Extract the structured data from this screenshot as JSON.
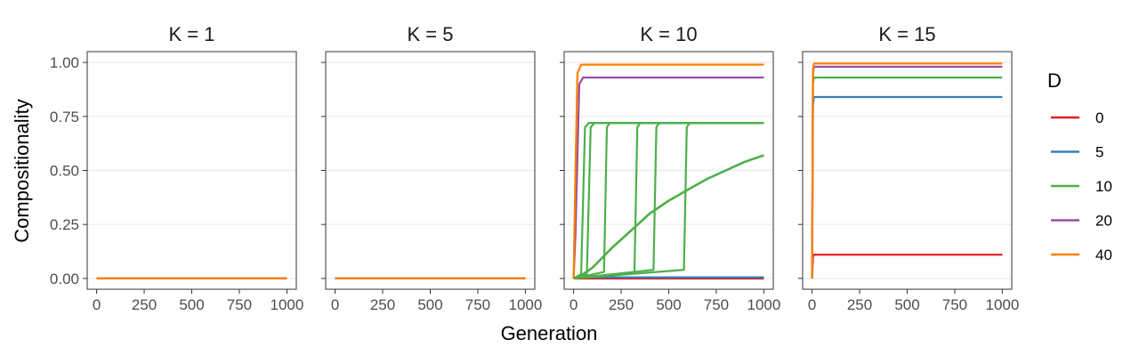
{
  "chart_data": {
    "type": "line",
    "facet_variable": "K",
    "xlabel": "Generation",
    "ylabel": "Compositionality",
    "xlim": [
      0,
      1000
    ],
    "ylim": [
      0,
      1
    ],
    "x_ticks": [
      "0",
      "250",
      "500",
      "750",
      "1000"
    ],
    "y_ticks": [
      "0.00",
      "0.25",
      "0.50",
      "0.75",
      "1.00"
    ],
    "grid": "horizontal",
    "legend": {
      "title": "D",
      "position": "right",
      "entries": [
        {
          "label": "0",
          "color": "#e41a1c"
        },
        {
          "label": "5",
          "color": "#377eb8"
        },
        {
          "label": "10",
          "color": "#4daf4a"
        },
        {
          "label": "20",
          "color": "#984ea3"
        },
        {
          "label": "40",
          "color": "#ff7f00"
        }
      ]
    },
    "panels": [
      {
        "title": "K = 1",
        "series": [
          {
            "D": "0",
            "x": [
              0,
              1000
            ],
            "y": [
              0,
              0
            ]
          },
          {
            "D": "5",
            "x": [
              0,
              1000
            ],
            "y": [
              0,
              0
            ]
          },
          {
            "D": "10",
            "x": [
              0,
              1000
            ],
            "y": [
              0,
              0
            ]
          },
          {
            "D": "20",
            "x": [
              0,
              1000
            ],
            "y": [
              0,
              0
            ]
          },
          {
            "D": "40",
            "x": [
              0,
              1000
            ],
            "y": [
              0,
              0
            ]
          }
        ]
      },
      {
        "title": "K = 5",
        "series": [
          {
            "D": "0",
            "x": [
              0,
              1000
            ],
            "y": [
              0,
              0
            ]
          },
          {
            "D": "5",
            "x": [
              0,
              1000
            ],
            "y": [
              0,
              0
            ]
          },
          {
            "D": "10",
            "x": [
              0,
              1000
            ],
            "y": [
              0,
              0
            ]
          },
          {
            "D": "20",
            "x": [
              0,
              1000
            ],
            "y": [
              0,
              0
            ]
          },
          {
            "D": "40",
            "x": [
              0,
              1000
            ],
            "y": [
              0,
              0
            ]
          }
        ]
      },
      {
        "title": "K = 10",
        "series": [
          {
            "D": "0",
            "x": [
              0,
              1000
            ],
            "y": [
              0,
              0
            ]
          },
          {
            "D": "5",
            "x": [
              0,
              1000
            ],
            "y": [
              0.005,
              0.005
            ]
          },
          {
            "D": "10",
            "x": [
              0,
              50,
              100,
              200,
              300,
              400,
              500,
              600,
              700,
              800,
              900,
              1000
            ],
            "y": [
              0,
              0.02,
              0.05,
              0.14,
              0.22,
              0.3,
              0.36,
              0.41,
              0.46,
              0.5,
              0.54,
              0.57
            ]
          },
          {
            "D": "10",
            "x": [
              0,
              40,
              60,
              80,
              1000
            ],
            "y": [
              0,
              0.02,
              0.7,
              0.72,
              0.72
            ]
          },
          {
            "D": "10",
            "x": [
              0,
              70,
              90,
              110,
              1000
            ],
            "y": [
              0,
              0.02,
              0.7,
              0.72,
              0.72
            ]
          },
          {
            "D": "10",
            "x": [
              0,
              160,
              175,
              190,
              1000
            ],
            "y": [
              0,
              0.03,
              0.7,
              0.72,
              0.72
            ]
          },
          {
            "D": "10",
            "x": [
              0,
              320,
              335,
              350,
              1000
            ],
            "y": [
              0,
              0.03,
              0.7,
              0.72,
              0.72
            ]
          },
          {
            "D": "10",
            "x": [
              0,
              420,
              435,
              450,
              1000
            ],
            "y": [
              0,
              0.04,
              0.7,
              0.72,
              0.72
            ]
          },
          {
            "D": "10",
            "x": [
              0,
              580,
              595,
              610,
              1000
            ],
            "y": [
              0,
              0.04,
              0.7,
              0.72,
              0.72
            ]
          },
          {
            "D": "20",
            "x": [
              0,
              10,
              30,
              50,
              1000
            ],
            "y": [
              0,
              0.2,
              0.9,
              0.93,
              0.93
            ]
          },
          {
            "D": "40",
            "x": [
              0,
              10,
              20,
              40,
              1000
            ],
            "y": [
              0,
              0.5,
              0.95,
              0.99,
              0.99
            ]
          }
        ]
      },
      {
        "title": "K = 15",
        "series": [
          {
            "D": "0",
            "x": [
              0,
              5,
              10,
              1000
            ],
            "y": [
              0,
              0.1,
              0.11,
              0.11
            ]
          },
          {
            "D": "5",
            "x": [
              0,
              5,
              10,
              1000
            ],
            "y": [
              0,
              0.8,
              0.84,
              0.84
            ]
          },
          {
            "D": "10",
            "x": [
              0,
              5,
              10,
              1000
            ],
            "y": [
              0,
              0.9,
              0.93,
              0.93
            ]
          },
          {
            "D": "20",
            "x": [
              0,
              5,
              10,
              1000
            ],
            "y": [
              0,
              0.95,
              0.98,
              0.98
            ]
          },
          {
            "D": "40",
            "x": [
              0,
              5,
              10,
              1000
            ],
            "y": [
              0,
              0.97,
              0.995,
              0.995
            ]
          }
        ]
      }
    ]
  }
}
